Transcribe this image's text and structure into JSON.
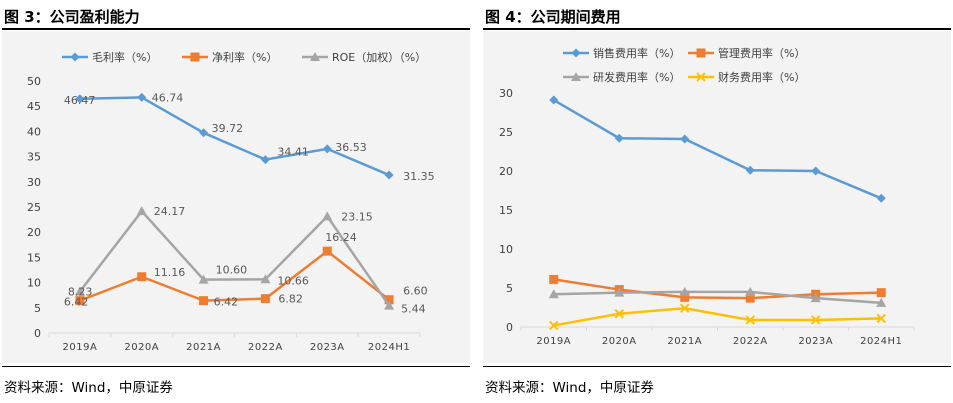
{
  "left": {
    "title": "图 3：公司盈利能力",
    "source": "资料来源：Wind，中原证券",
    "chart_data": {
      "type": "line",
      "title": "",
      "categories": [
        "2019A",
        "2020A",
        "2021A",
        "2022A",
        "2023A",
        "2024H1"
      ],
      "ylim": [
        0,
        50
      ],
      "yticks": [
        0,
        5,
        10,
        15,
        20,
        25,
        30,
        35,
        40,
        45,
        50
      ],
      "grid": false,
      "legend_position": "top",
      "series": [
        {
          "name": "毛利率（%）",
          "color": "#5b9bd5",
          "marker": "diamond",
          "values": [
            46.47,
            46.74,
            39.72,
            34.41,
            36.53,
            31.35
          ],
          "labels": [
            "46.47",
            "46.74",
            "39.72",
            "34.41",
            "36.53",
            "31.35"
          ]
        },
        {
          "name": "净利率（%）",
          "color": "#ed7d31",
          "marker": "square",
          "values": [
            6.42,
            11.16,
            6.42,
            6.82,
            16.24,
            6.6
          ],
          "labels": [
            "6.42",
            "11.16",
            "6.42",
            "6.82",
            "16.24",
            "6.60"
          ]
        },
        {
          "name": "ROE（加权）（%）",
          "color": "#a5a5a5",
          "marker": "triangle",
          "values": [
            8.23,
            24.17,
            10.6,
            10.66,
            23.15,
            5.44
          ],
          "labels": [
            "8.23",
            "24.17",
            "10.60",
            "10.66",
            "23.15",
            "5.44"
          ]
        }
      ]
    }
  },
  "right": {
    "title": "图 4：公司期间费用",
    "source": "资料来源：Wind，中原证券",
    "chart_data": {
      "type": "line",
      "title": "",
      "categories": [
        "2019A",
        "2020A",
        "2021A",
        "2022A",
        "2023A",
        "2024H1"
      ],
      "ylim": [
        0,
        30
      ],
      "yticks": [
        0,
        5,
        10,
        15,
        20,
        25,
        30
      ],
      "grid": false,
      "legend_position": "top",
      "series": [
        {
          "name": "销售费用率（%）",
          "color": "#5b9bd5",
          "marker": "diamond",
          "values": [
            29.1,
            24.2,
            24.1,
            20.1,
            20.0,
            16.5
          ]
        },
        {
          "name": "管理费用率（%）",
          "color": "#ed7d31",
          "marker": "square",
          "values": [
            6.1,
            4.8,
            3.8,
            3.7,
            4.2,
            4.4
          ]
        },
        {
          "name": "研发费用率（%）",
          "color": "#a5a5a5",
          "marker": "triangle",
          "values": [
            4.2,
            4.4,
            4.5,
            4.5,
            3.7,
            3.1
          ]
        },
        {
          "name": "财务费用率（%）",
          "color": "#ffc000",
          "marker": "cross",
          "values": [
            0.2,
            1.7,
            2.4,
            0.9,
            0.9,
            1.1
          ]
        }
      ]
    }
  }
}
